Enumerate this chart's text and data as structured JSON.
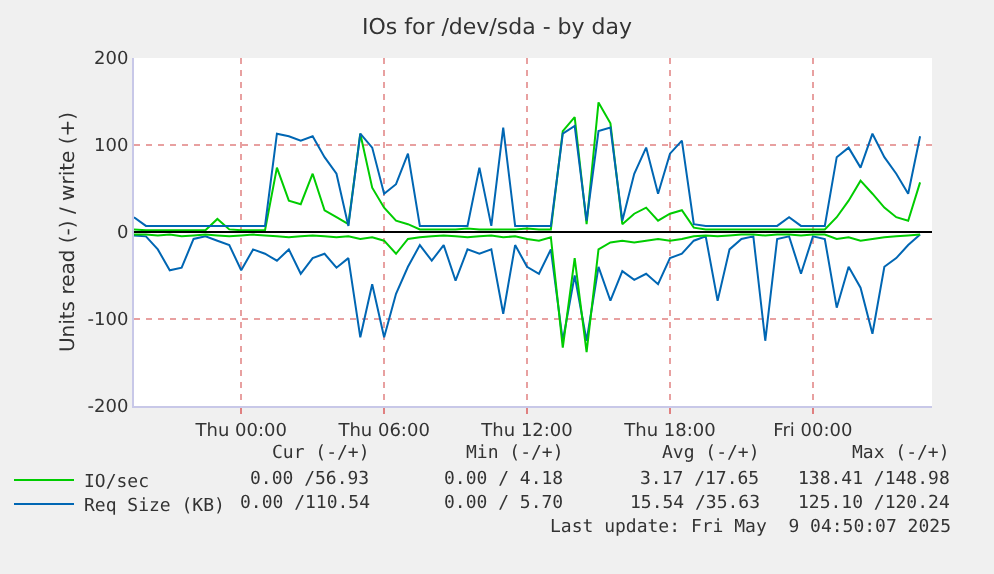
{
  "chart_data": {
    "type": "line",
    "title": "IOs for /dev/sda - by day",
    "ylabel": "Units read (-) / write (+)",
    "x": [
      "2025-05-07T19:30",
      "2025-05-07T20:00",
      "2025-05-07T20:30",
      "2025-05-07T21:00",
      "2025-05-07T21:30",
      "2025-05-07T22:00",
      "2025-05-07T22:30",
      "2025-05-07T23:00",
      "2025-05-07T23:30",
      "2025-05-08T00:00",
      "2025-05-08T00:30",
      "2025-05-08T01:00",
      "2025-05-08T01:30",
      "2025-05-08T02:00",
      "2025-05-08T02:30",
      "2025-05-08T03:00",
      "2025-05-08T03:30",
      "2025-05-08T04:00",
      "2025-05-08T04:30",
      "2025-05-08T05:00",
      "2025-05-08T05:30",
      "2025-05-08T06:00",
      "2025-05-08T06:30",
      "2025-05-08T07:00",
      "2025-05-08T07:30",
      "2025-05-08T08:00",
      "2025-05-08T08:30",
      "2025-05-08T09:00",
      "2025-05-08T09:30",
      "2025-05-08T10:00",
      "2025-05-08T10:30",
      "2025-05-08T11:00",
      "2025-05-08T11:30",
      "2025-05-08T12:00",
      "2025-05-08T12:30",
      "2025-05-08T13:00",
      "2025-05-08T13:30",
      "2025-05-08T14:00",
      "2025-05-08T14:30",
      "2025-05-08T15:00",
      "2025-05-08T15:30",
      "2025-05-08T16:00",
      "2025-05-08T16:30",
      "2025-05-08T17:00",
      "2025-05-08T17:30",
      "2025-05-08T18:00",
      "2025-05-08T18:30",
      "2025-05-08T19:00",
      "2025-05-08T19:30",
      "2025-05-08T20:00",
      "2025-05-08T20:30",
      "2025-05-08T21:00",
      "2025-05-08T21:30",
      "2025-05-08T22:00",
      "2025-05-08T22:30",
      "2025-05-08T23:00",
      "2025-05-08T23:30",
      "2025-05-09T00:00",
      "2025-05-09T00:30",
      "2025-05-09T01:00",
      "2025-05-09T01:30",
      "2025-05-09T02:00",
      "2025-05-09T02:30",
      "2025-05-09T03:00",
      "2025-05-09T03:30",
      "2025-05-09T04:00",
      "2025-05-09T04:30"
    ],
    "series": [
      {
        "name": null,
        "color": "#0066b3",
        "values": [
          -4,
          -5,
          -20,
          -44,
          -41,
          -8,
          -5,
          -10,
          -15,
          -44,
          -20,
          -25,
          -33,
          -20,
          -48,
          -30,
          -25,
          -41,
          -30,
          -121,
          -60,
          -121,
          -71,
          -40,
          -15,
          -33,
          -15,
          -56,
          -20,
          -25,
          -20,
          -94,
          -15,
          -40,
          -48,
          -20,
          -125,
          -50,
          -125,
          -40,
          -79,
          -45,
          -55,
          -48,
          -60,
          -30,
          -25,
          -10,
          -5,
          -79,
          -20,
          -8,
          -5,
          -125,
          -8,
          -5,
          -48,
          -5,
          -8,
          -87,
          -40,
          -64,
          -117,
          -40,
          -30,
          -15,
          -3
        ]
      },
      {
        "name": null,
        "color": "#00cc00",
        "values": [
          -3,
          -3,
          -4,
          -3,
          -5,
          -4,
          -3,
          -4,
          -5,
          -4,
          -3,
          -4,
          -5,
          -6,
          -5,
          -4,
          -5,
          -6,
          -5,
          -8,
          -6,
          -10,
          -25,
          -8,
          -6,
          -5,
          -4,
          -5,
          -6,
          -5,
          -4,
          -6,
          -5,
          -8,
          -10,
          -6,
          -133,
          -30,
          -138,
          -20,
          -12,
          -10,
          -12,
          -10,
          -8,
          -10,
          -8,
          -5,
          -4,
          -5,
          -4,
          -3,
          -3,
          -4,
          -3,
          -3,
          -4,
          -3,
          -3,
          -8,
          -6,
          -10,
          -8,
          -6,
          -5,
          -4,
          -3
        ]
      },
      {
        "name": "IO/sec",
        "color": "#00cc00",
        "values": [
          3,
          2,
          2,
          2,
          2,
          2,
          2,
          15,
          3,
          2,
          2,
          2,
          74,
          36,
          32,
          67,
          25,
          17,
          9,
          113,
          51,
          28,
          13,
          9,
          3,
          3,
          3,
          3,
          4,
          3,
          3,
          3,
          3,
          4,
          3,
          3,
          116,
          132,
          9,
          149,
          125,
          9,
          21,
          28,
          13,
          21,
          25,
          5,
          3,
          3,
          3,
          3,
          3,
          3,
          3,
          3,
          3,
          3,
          3,
          17,
          36,
          59,
          44,
          28,
          17,
          13,
          57
        ]
      },
      {
        "name": "Req Size (KB)",
        "color": "#0066b3",
        "values": [
          17,
          7,
          7,
          7,
          7,
          7,
          7,
          7,
          7,
          7,
          7,
          7,
          113,
          110,
          105,
          110,
          86,
          67,
          7,
          113,
          97,
          44,
          55,
          90,
          7,
          7,
          7,
          7,
          7,
          74,
          7,
          120,
          7,
          7,
          7,
          7,
          113,
          122,
          13,
          116,
          120,
          13,
          67,
          97,
          44,
          90,
          105,
          9,
          7,
          7,
          7,
          7,
          7,
          7,
          7,
          17,
          7,
          7,
          7,
          86,
          97,
          74,
          113,
          86,
          67,
          44,
          110
        ]
      }
    ],
    "xlim": [
      "2025-05-07T19:30",
      "2025-05-09T05:00"
    ],
    "xticks": [
      {
        "value": "2025-05-08T00:00",
        "label": "Thu 00:00"
      },
      {
        "value": "2025-05-08T06:00",
        "label": "Thu 06:00"
      },
      {
        "value": "2025-05-08T12:00",
        "label": "Thu 12:00"
      },
      {
        "value": "2025-05-08T18:00",
        "label": "Thu 18:00"
      },
      {
        "value": "2025-05-09T00:00",
        "label": "Fri 00:00"
      }
    ],
    "ylim": [
      -200,
      200
    ],
    "yticks": [
      -200,
      -100,
      0,
      100,
      200
    ],
    "ref_lines": [
      {
        "axis": "y",
        "value": 0,
        "color": "#000000"
      }
    ],
    "grid": true,
    "legend": "bottom left",
    "annotations": [
      "Cur (-/+)",
      "Min (-/+)",
      "Avg (-/+)",
      "Max (-/+)",
      "0.00 /56.93",
      "0.00 / 4.18",
      "3.17 /17.65",
      "138.41 /148.98",
      "0.00 /110.54",
      "0.00 / 5.70",
      "15.54 /35.63",
      "125.10 /120.24",
      "Last update: Fri May  9 04:50:07 2025"
    ]
  }
}
